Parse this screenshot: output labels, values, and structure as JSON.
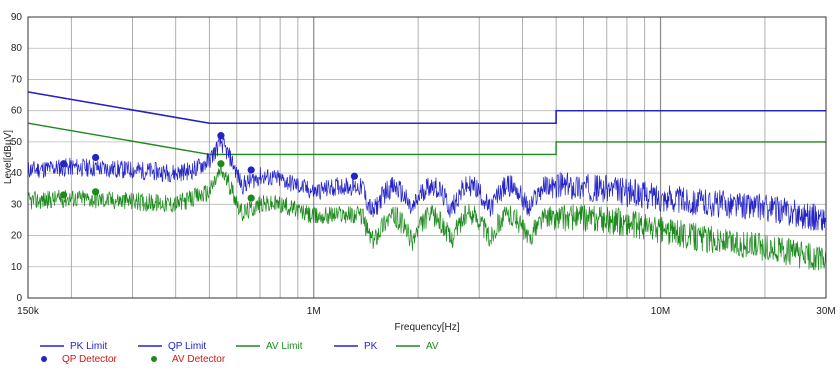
{
  "chart_data": {
    "type": "line",
    "title": "",
    "xlabel": "Frequency[Hz]",
    "ylabel": "Level[dBµV]",
    "x_scale": "log",
    "xlim": [
      150000,
      30000000
    ],
    "ylim": [
      0,
      90
    ],
    "grid": true,
    "legend_position": "bottom-left",
    "x_ticks": [
      {
        "value": 150000,
        "label": "150k"
      },
      {
        "value": 1000000,
        "label": "1M"
      },
      {
        "value": 10000000,
        "label": "10M"
      },
      {
        "value": 30000000,
        "label": "30M"
      }
    ],
    "y_ticks": [
      0,
      10,
      20,
      30,
      40,
      50,
      60,
      70,
      80,
      90
    ],
    "colors": {
      "blue": "#2323c8",
      "green": "#1c8a1c",
      "detector_label": "#d01818"
    },
    "limits": [
      {
        "name": "PK Limit",
        "color": "#2323c8",
        "x": [
          150000,
          500000,
          500000,
          5000000,
          5000000,
          30000000
        ],
        "y": [
          66,
          56,
          56,
          56,
          60,
          60
        ]
      },
      {
        "name": "QP Limit",
        "color": "#2323c8",
        "x": [
          150000,
          500000,
          500000,
          5000000,
          5000000,
          30000000
        ],
        "y": [
          66,
          56,
          56,
          56,
          60,
          60
        ]
      },
      {
        "name": "AV Limit",
        "color": "#1c8a1c",
        "x": [
          150000,
          500000,
          500000,
          5000000,
          5000000,
          30000000
        ],
        "y": [
          56,
          46,
          46,
          46,
          50,
          50
        ]
      }
    ],
    "traces": [
      {
        "name": "PK",
        "color": "#2323c8",
        "x": [
          150000,
          200000,
          300000,
          400000,
          450000,
          500000,
          540000,
          580000,
          620000,
          700000,
          800000,
          900000,
          1000000,
          1200000,
          1500000,
          2000000,
          3000000,
          5000000,
          7000000,
          9000000,
          12000000,
          20000000,
          25000000,
          30000000
        ],
        "y": [
          41,
          42,
          41,
          40,
          41,
          44,
          50,
          44,
          36,
          39,
          38,
          36,
          34,
          36,
          35,
          36,
          36,
          36,
          35,
          33,
          31,
          29,
          27,
          25
        ]
      },
      {
        "name": "AV",
        "color": "#1c8a1c",
        "x": [
          150000,
          200000,
          300000,
          400000,
          450000,
          500000,
          540000,
          580000,
          620000,
          700000,
          800000,
          900000,
          1000000,
          1200000,
          1500000,
          2000000,
          3000000,
          5000000,
          7000000,
          9000000,
          12000000,
          20000000,
          25000000,
          30000000
        ],
        "y": [
          31,
          32,
          31,
          30,
          32,
          34,
          41,
          35,
          27,
          30,
          30,
          28,
          26,
          27,
          26,
          26,
          27,
          26,
          25,
          23,
          20,
          16,
          14,
          12
        ]
      }
    ],
    "detectors": [
      {
        "name": "QP Detector",
        "color": "#2323c8",
        "points": [
          {
            "x": 190000,
            "y": 43
          },
          {
            "x": 235000,
            "y": 45
          },
          {
            "x": 540000,
            "y": 52
          },
          {
            "x": 660000,
            "y": 41
          },
          {
            "x": 1310000,
            "y": 39
          }
        ]
      },
      {
        "name": "AV Detector",
        "color": "#1c8a1c",
        "points": [
          {
            "x": 190000,
            "y": 33
          },
          {
            "x": 235000,
            "y": 34
          },
          {
            "x": 540000,
            "y": 43
          },
          {
            "x": 660000,
            "y": 32
          }
        ]
      }
    ],
    "legend": {
      "row1": [
        {
          "name": "PK Limit",
          "color": "#2323c8",
          "kind": "line"
        },
        {
          "name": "QP Limit",
          "color": "#2323c8",
          "kind": "line"
        },
        {
          "name": "AV Limit",
          "color": "#1c8a1c",
          "kind": "line"
        },
        {
          "name": "PK",
          "color": "#2323c8",
          "kind": "line"
        },
        {
          "name": "AV",
          "color": "#1c8a1c",
          "kind": "line"
        }
      ],
      "row2": [
        {
          "name": "QP Detector",
          "color": "#2323c8",
          "label_color": "#d01818",
          "kind": "dot"
        },
        {
          "name": "AV Detector",
          "color": "#1c8a1c",
          "label_color": "#d01818",
          "kind": "dot"
        }
      ]
    }
  }
}
